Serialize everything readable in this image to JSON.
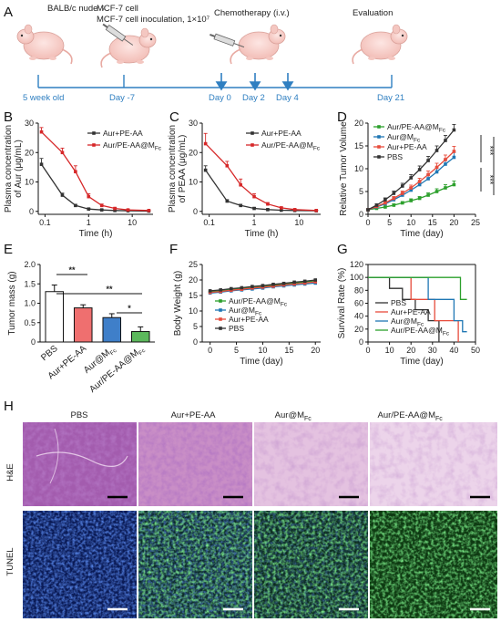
{
  "panels": {
    "A": {
      "letter": "A",
      "mouse_strain": "BALB/c nude ♀",
      "inoculation": "MCF-7 cell inoculation, 1×10⁷",
      "chemo": "Chemotherapy (i.v.)",
      "evaluation": "Evaluation",
      "timeline": [
        "5 week old",
        "Day -7",
        "Day 0",
        "Day 2",
        "Day 4",
        "Day 21"
      ],
      "colors": {
        "timeline": "#2f7fc1",
        "arrow": "#2f7fc1"
      }
    },
    "B": {
      "letter": "B"
    },
    "C": {
      "letter": "C"
    },
    "D": {
      "letter": "D",
      "sig": [
        "***",
        "***",
        "***"
      ]
    },
    "E": {
      "letter": "E",
      "sig": [
        "**",
        "**",
        "*"
      ]
    },
    "F": {
      "letter": "F"
    },
    "G": {
      "letter": "G"
    },
    "H": {
      "letter": "H",
      "columns": [
        "PBS",
        "Aur+PE-AA",
        "Aur@M",
        "Aur/PE-AA@M"
      ],
      "column_subscript": [
        "",
        "",
        "Fc",
        "Fc"
      ],
      "rows": [
        "H&E",
        "TUNEL"
      ]
    }
  },
  "chart_data": [
    {
      "id": "B",
      "type": "line",
      "xscale": "log",
      "xlabel": "Time (h)",
      "ylabel": "Plasma concentration of Aur (μg/mL)",
      "xlim": [
        0.07,
        30
      ],
      "ylim": [
        -1,
        30
      ],
      "xticks": [
        0.1,
        1,
        10
      ],
      "xticklabels": [
        "0.1",
        "1",
        "10"
      ],
      "yticks": [
        0,
        10,
        20,
        30
      ],
      "x": [
        0.083,
        0.25,
        0.5,
        1,
        2,
        4,
        8,
        24
      ],
      "series": [
        {
          "name": "Aur+PE-AA",
          "color": "#333333",
          "values": [
            16,
            5.5,
            2,
            0.8,
            0.5,
            0.3,
            0.2,
            0.1
          ],
          "err": [
            2,
            0.7,
            0.4,
            0.3,
            0.2,
            0.1,
            0.1,
            0.1
          ]
        },
        {
          "name": "Aur/PE-AA@M",
          "name_sub": "Fc",
          "color": "#d62728",
          "values": [
            27,
            20,
            13.5,
            5,
            2,
            1,
            0.5,
            0.3
          ],
          "err": [
            1.5,
            1.5,
            2,
            1,
            0.5,
            0.3,
            0.2,
            0.1
          ]
        }
      ],
      "legend": "top-right"
    },
    {
      "id": "C",
      "type": "line",
      "xscale": "log",
      "xlabel": "Time (h)",
      "ylabel": "Plasma concentration of PEAA (μg/mL)",
      "xlim": [
        0.07,
        30
      ],
      "ylim": [
        -1,
        30
      ],
      "xticks": [
        0.1,
        1,
        10
      ],
      "xticklabels": [
        "0.1",
        "1",
        "10"
      ],
      "yticks": [
        0,
        10,
        20,
        30
      ],
      "x": [
        0.083,
        0.25,
        0.5,
        1,
        2,
        4,
        8,
        24
      ],
      "series": [
        {
          "name": "Aur+PE-AA",
          "color": "#333333",
          "values": [
            14,
            3.5,
            2,
            1,
            0.6,
            0.4,
            0.3,
            0.2
          ],
          "err": [
            1.5,
            0.5,
            0.4,
            0.3,
            0.2,
            0.1,
            0.1,
            0.1
          ]
        },
        {
          "name": "Aur/PE-AA@M",
          "name_sub": "Fc",
          "color": "#d62728",
          "values": [
            23,
            15.5,
            9,
            5,
            2.5,
            1.2,
            0.6,
            0.3
          ],
          "err": [
            3.5,
            1.5,
            2,
            1,
            0.5,
            0.3,
            0.2,
            0.1
          ]
        }
      ],
      "legend": "top-right"
    },
    {
      "id": "D",
      "type": "line",
      "xlabel": "Time (day)",
      "ylabel": "Relative Tumor Volume",
      "xlim": [
        0,
        25
      ],
      "ylim": [
        0,
        20
      ],
      "xticks": [
        0,
        5,
        10,
        15,
        20,
        25
      ],
      "yticks": [
        0,
        5,
        10,
        15,
        20
      ],
      "x": [
        0,
        2,
        4,
        6,
        8,
        10,
        12,
        14,
        16,
        18,
        20
      ],
      "series": [
        {
          "name": "Aur/PE-AA@M",
          "name_sub": "Fc",
          "color": "#2ca02c",
          "values": [
            1,
            1.3,
            1.6,
            2,
            2.5,
            3,
            3.5,
            4.2,
            5,
            5.8,
            6.5
          ],
          "err": [
            0.1,
            0.2,
            0.2,
            0.3,
            0.3,
            0.4,
            0.4,
            0.5,
            0.6,
            0.7,
            0.8
          ]
        },
        {
          "name": "Aur@M",
          "name_sub": "Fc",
          "color": "#1f77b4",
          "values": [
            1,
            1.6,
            2.3,
            3.2,
            4.2,
            5.3,
            6.5,
            7.8,
            9.3,
            11,
            12.5
          ],
          "err": [
            0.1,
            0.2,
            0.3,
            0.4,
            0.5,
            0.6,
            0.7,
            0.8,
            0.9,
            1,
            1.1
          ]
        },
        {
          "name": "Aur+PE-AA",
          "color": "#e74c3c",
          "values": [
            1,
            1.7,
            2.5,
            3.5,
            4.6,
            5.8,
            7.2,
            8.7,
            10.3,
            12,
            13.8
          ],
          "err": [
            0.1,
            0.2,
            0.3,
            0.4,
            0.5,
            0.6,
            0.7,
            0.8,
            0.9,
            1,
            1.1
          ]
        },
        {
          "name": "PBS",
          "color": "#333333",
          "values": [
            1,
            2,
            3.2,
            4.6,
            6.2,
            8,
            9.8,
            11.8,
            14,
            16.2,
            18.5
          ],
          "err": [
            0.1,
            0.3,
            0.4,
            0.5,
            0.6,
            0.7,
            0.8,
            0.9,
            1,
            1.1,
            1.2
          ]
        }
      ],
      "legend": "top-left"
    },
    {
      "id": "E",
      "type": "bar",
      "ylabel": "Tumor mass (g)",
      "ylim": [
        0,
        2.0
      ],
      "yticks": [
        0,
        0.5,
        1.0,
        1.5,
        2.0
      ],
      "yticklabels": [
        "0",
        "0.5",
        "1.0",
        "1.5",
        "2.0"
      ],
      "categories": [
        "PBS",
        "Aur+PE-AA",
        "Aur@M",
        "Aur/PE-AA@M"
      ],
      "category_sub": [
        "",
        "",
        "Fc",
        "Fc"
      ],
      "values": [
        1.3,
        0.88,
        0.63,
        0.27
      ],
      "err": [
        0.17,
        0.08,
        0.1,
        0.12
      ],
      "colors": [
        "#ffffff",
        "#ef6f6f",
        "#3f7fc9",
        "#5cb85c"
      ]
    },
    {
      "id": "F",
      "type": "line",
      "xlabel": "Time (day)",
      "ylabel": "Body Weight (g)",
      "xlim": [
        -1.5,
        21
      ],
      "ylim": [
        0,
        25
      ],
      "xticks": [
        0,
        5,
        10,
        15,
        20
      ],
      "yticks": [
        0,
        5,
        10,
        15,
        20,
        25
      ],
      "x": [
        0,
        2,
        4,
        6,
        8,
        10,
        12,
        14,
        16,
        18,
        20
      ],
      "series": [
        {
          "name": "Aur/PE-AA@M",
          "name_sub": "Fc",
          "color": "#2ca02c",
          "values": [
            16.2,
            16.5,
            16.9,
            17.2,
            17.6,
            18,
            18.3,
            18.7,
            19,
            19.4,
            19.7
          ]
        },
        {
          "name": "Aur@M",
          "name_sub": "Fc",
          "color": "#1f77b4",
          "values": [
            15.8,
            16.1,
            16.5,
            16.8,
            17.1,
            17.4,
            17.8,
            18.1,
            18.4,
            18.7,
            19
          ]
        },
        {
          "name": "Aur+PE-AA",
          "color": "#e74c3c",
          "values": [
            16,
            16.3,
            16.7,
            17,
            17.4,
            17.7,
            18,
            18.4,
            18.7,
            19,
            19.4
          ]
        },
        {
          "name": "PBS",
          "color": "#333333",
          "values": [
            16.5,
            16.8,
            17.2,
            17.5,
            17.9,
            18.2,
            18.6,
            18.9,
            19.3,
            19.6,
            20
          ]
        }
      ],
      "legend": "bottom-left"
    },
    {
      "id": "G",
      "type": "line",
      "step": true,
      "xlabel": "Time (day)",
      "ylabel": "Survival Rate (%)",
      "xlim": [
        0,
        50
      ],
      "ylim": [
        0,
        120
      ],
      "xticks": [
        0,
        10,
        20,
        30,
        40,
        50
      ],
      "yticks": [
        0,
        20,
        40,
        60,
        80,
        100,
        120
      ],
      "series": [
        {
          "name": "PBS",
          "color": "#333333",
          "x": [
            0,
            10,
            10,
            16,
            16,
            22,
            22,
            28,
            28,
            33,
            33
          ],
          "values": [
            100,
            100,
            83,
            83,
            66,
            66,
            50,
            50,
            33,
            33,
            0
          ]
        },
        {
          "name": "Aur+PE-AA",
          "color": "#e74c3c",
          "x": [
            0,
            20,
            20,
            31,
            31,
            42,
            42
          ],
          "values": [
            100,
            100,
            66,
            66,
            33,
            33,
            0
          ]
        },
        {
          "name": "Aur@M",
          "name_sub": "Fc",
          "color": "#1f77b4",
          "x": [
            0,
            28,
            28,
            40,
            40,
            44,
            44,
            46
          ],
          "values": [
            100,
            100,
            66,
            66,
            33,
            33,
            16,
            16
          ]
        },
        {
          "name": "Aur/PE-AA@M",
          "name_sub": "Fc",
          "color": "#2ca02c",
          "x": [
            0,
            43,
            43,
            46
          ],
          "values": [
            100,
            100,
            66,
            66
          ]
        }
      ],
      "legend": "bottom-left"
    }
  ]
}
